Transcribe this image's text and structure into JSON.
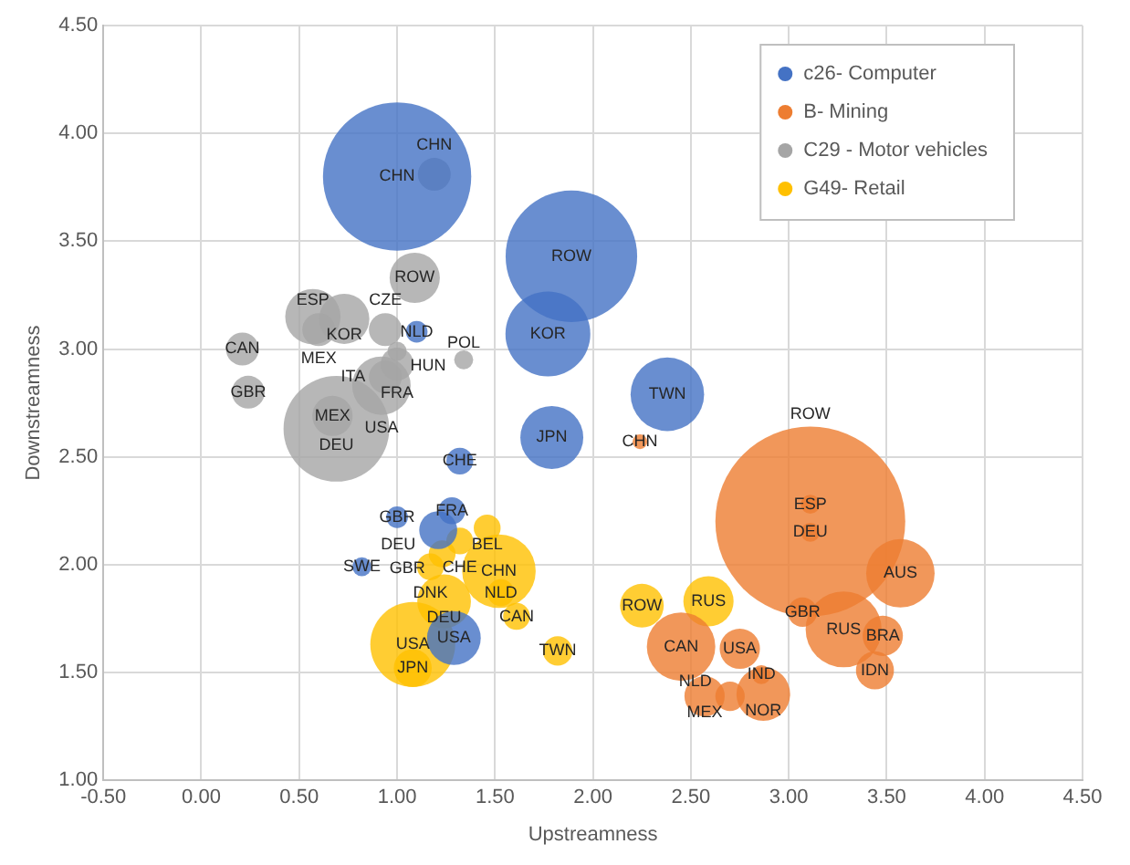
{
  "chart_data": {
    "type": "bubble",
    "xlabel": "Upstreamness",
    "ylabel": "Downstreamness",
    "xlim": [
      -0.5,
      4.5
    ],
    "xticks": [
      {
        "value": -0.5,
        "label": "-0.50"
      },
      {
        "value": 0,
        "label": "0.00"
      },
      {
        "value": 0.5,
        "label": "0.50"
      },
      {
        "value": 1,
        "label": "1.00"
      },
      {
        "value": 1.5,
        "label": "1.50"
      },
      {
        "value": 2,
        "label": "2.00"
      },
      {
        "value": 2.5,
        "label": "2.50"
      },
      {
        "value": 3,
        "label": "3.00"
      },
      {
        "value": 3.5,
        "label": "3.50"
      },
      {
        "value": 4,
        "label": "4.00"
      },
      {
        "value": 4.5,
        "label": "4.50"
      }
    ],
    "ylim": [
      1,
      4.5
    ],
    "yticks": [
      {
        "value": 1,
        "label": "1.00"
      },
      {
        "value": 1.5,
        "label": "1.50"
      },
      {
        "value": 2,
        "label": "2.00"
      },
      {
        "value": 2.5,
        "label": "2.50"
      },
      {
        "value": 3,
        "label": "3.00"
      },
      {
        "value": 3.5,
        "label": "3.50"
      },
      {
        "value": 4,
        "label": "4.00"
      },
      {
        "value": 4.5,
        "label": "4.50"
      }
    ],
    "grid": true,
    "legend": "top right",
    "series": [
      {
        "name": "c26- Computer",
        "color": "#4472c4",
        "x": [
          1.0,
          1.89,
          1.77,
          2.38,
          1.79,
          1.32,
          1.1,
          1.28,
          1.0,
          1.21,
          0.82,
          1.29
        ],
        "values": [
          3.8,
          3.43,
          3.07,
          2.79,
          2.59,
          2.48,
          3.08,
          2.25,
          2.22,
          2.16,
          1.99,
          1.66
        ],
        "sizes": [
          0.61,
          0.48,
          0.2,
          0.15,
          0.11,
          0.02,
          0.013,
          0.02,
          0.013,
          0.04,
          0.01,
          0.08
        ],
        "value_labels": [
          "CHN",
          "ROW",
          "KOR",
          "TWN",
          "JPN",
          "CHE",
          "NLD",
          "FRA",
          "GBR",
          "DEU",
          "SWE",
          "USA"
        ]
      },
      {
        "name": "B- Mining",
        "color": "#ed7d31",
        "x": [
          3.11,
          3.11,
          3.11,
          2.24,
          3.57,
          3.07,
          3.28,
          3.48,
          3.44,
          2.45,
          2.75,
          2.86,
          2.87,
          2.7,
          2.57
        ],
        "values": [
          2.28,
          2.2,
          2.15,
          2.57,
          1.96,
          1.78,
          1.7,
          1.67,
          1.51,
          1.62,
          1.61,
          1.49,
          1.4,
          1.39,
          1.39
        ],
        "sizes": [
          0.01,
          1.0,
          0.01,
          0.006,
          0.13,
          0.024,
          0.16,
          0.045,
          0.04,
          0.13,
          0.045,
          0.01,
          0.08,
          0.024,
          0.045
        ],
        "value_labels": [
          "ESP",
          "ROW",
          "DEU",
          "CHN",
          "AUS",
          "GBR",
          "RUS",
          "BRA",
          "IDN",
          "CAN",
          "USA",
          "IND",
          "NOR",
          "NLD",
          "MEX"
        ]
      },
      {
        "name": "C29 - Motor vehicles",
        "color": "#a5a5a5",
        "x": [
          1.19,
          1.09,
          0.57,
          0.73,
          0.6,
          0.94,
          1.0,
          1.0,
          0.94,
          0.92,
          0.21,
          0.24,
          0.69,
          0.67,
          1.34
        ],
        "values": [
          3.81,
          3.33,
          3.15,
          3.14,
          3.09,
          3.09,
          2.99,
          2.93,
          2.87,
          2.83,
          3.0,
          2.8,
          2.63,
          2.69,
          2.95
        ],
        "sizes": [
          0.03,
          0.07,
          0.085,
          0.07,
          0.03,
          0.03,
          0.01,
          0.03,
          0.03,
          0.095,
          0.03,
          0.03,
          0.31,
          0.045,
          0.01
        ],
        "value_labels": [
          "CHN",
          "ROW",
          "ESP",
          "KOR",
          "MEX",
          "CZE",
          "HUN",
          "FRA",
          "ITA",
          "USA",
          "CAN",
          "GBR",
          "DEU",
          "MEX",
          "POL"
        ]
      },
      {
        "name": "G49- Retail",
        "color": "#ffc000",
        "x": [
          1.46,
          1.32,
          1.23,
          1.17,
          1.52,
          1.53,
          1.61,
          1.24,
          1.08,
          1.08,
          1.82,
          2.25,
          2.59
        ],
        "values": [
          2.17,
          2.11,
          2.05,
          1.99,
          1.97,
          1.87,
          1.76,
          1.83,
          1.63,
          1.52,
          1.6,
          1.81,
          1.83
        ],
        "sizes": [
          0.02,
          0.02,
          0.02,
          0.02,
          0.15,
          0.02,
          0.02,
          0.08,
          0.2,
          0.04,
          0.024,
          0.053,
          0.07
        ],
        "value_labels": [
          "BEL",
          "CHE",
          "GBR",
          "DNK",
          "CHN",
          "NLD",
          "CAN",
          "DEU",
          "USA",
          "JPN",
          "TWN",
          "ROW",
          "RUS"
        ]
      }
    ]
  }
}
